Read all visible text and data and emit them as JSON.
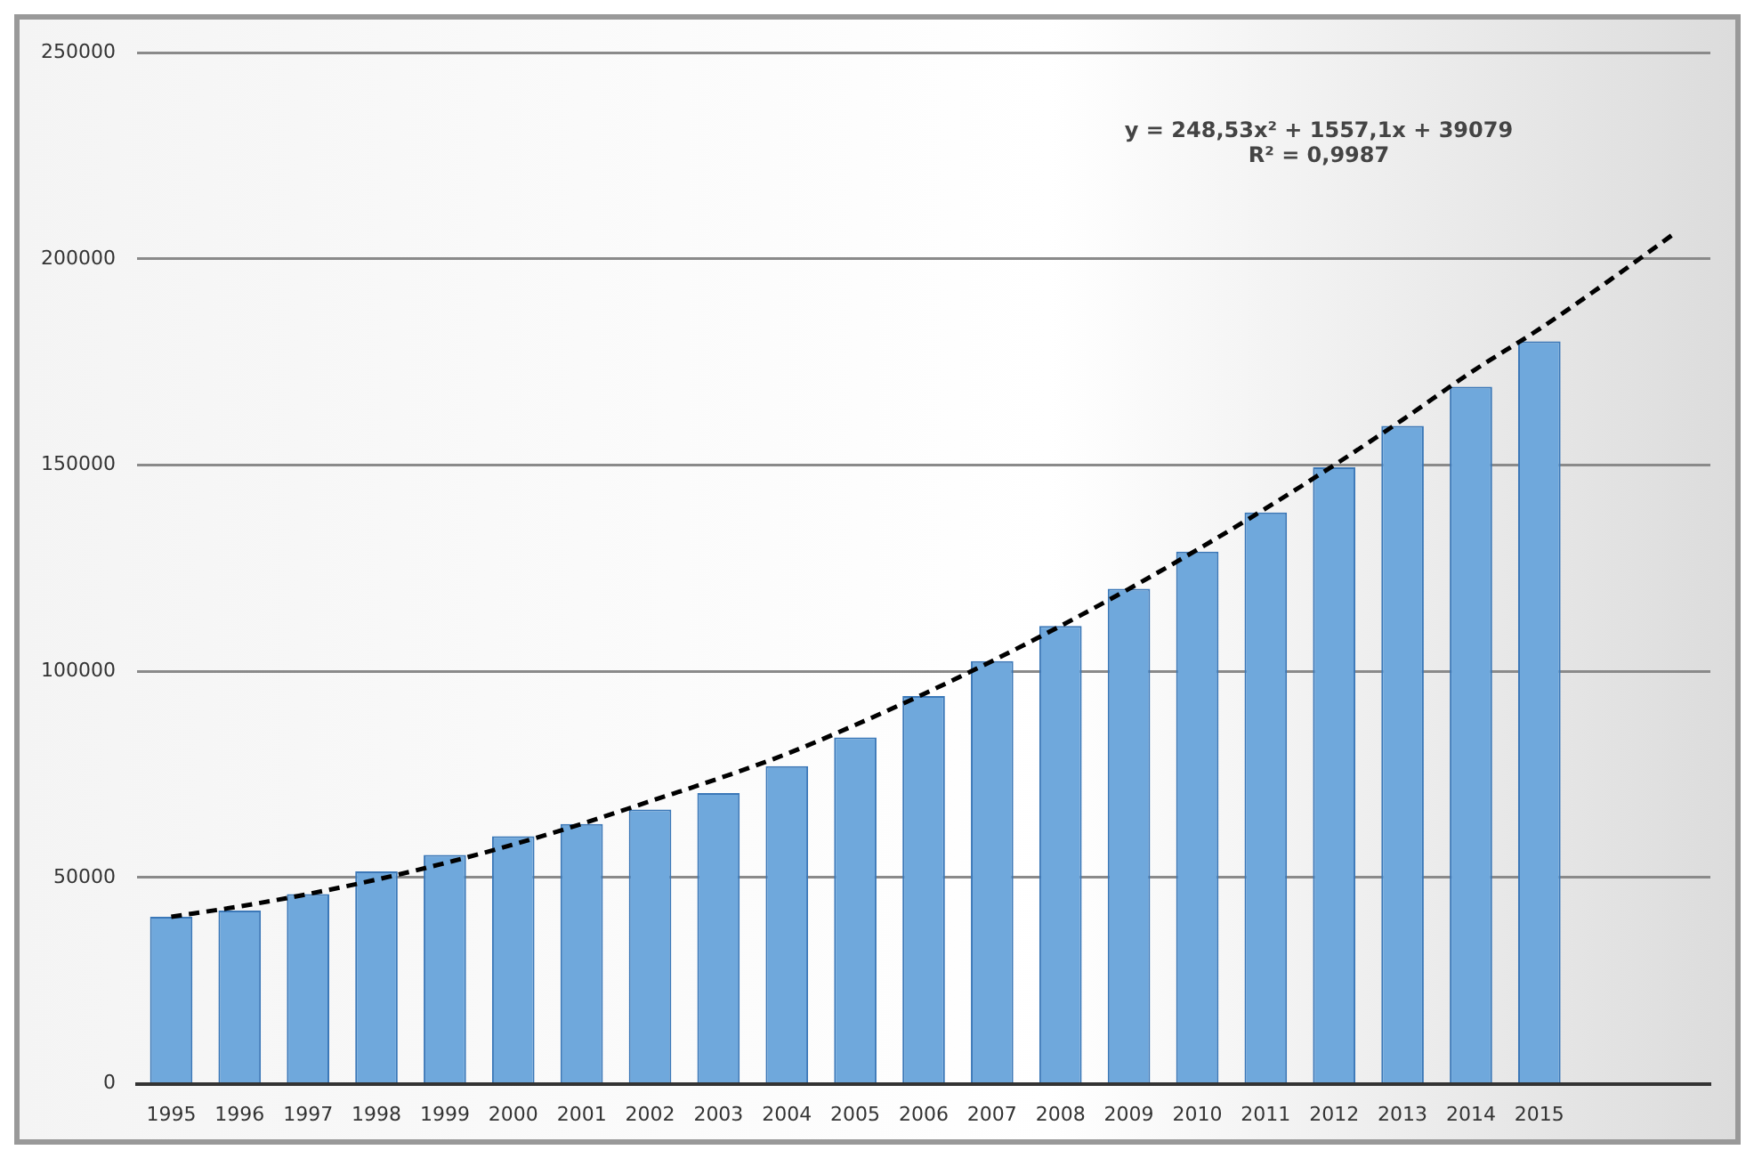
{
  "chart_data": {
    "type": "bar",
    "categories": [
      "1995",
      "1996",
      "1997",
      "1998",
      "1999",
      "2000",
      "2001",
      "2002",
      "2003",
      "2004",
      "2005",
      "2006",
      "2007",
      "2008",
      "2009",
      "2010",
      "2011",
      "2012",
      "2013",
      "2014",
      "2015",
      null,
      null
    ],
    "series": [
      {
        "color": "#6fa8dc",
        "values": [
          40500,
          42000,
          46000,
          51500,
          55500,
          60000,
          63000,
          66500,
          70500,
          77000,
          84000,
          94000,
          102500,
          111000,
          120000,
          129000,
          138500,
          149500,
          159500,
          169000,
          180000,
          null,
          null
        ]
      },
      {
        "type": "line",
        "color": "#000000",
        "line_style": "dashed",
        "marker": "none",
        "values": [
          40500,
          43000,
          46000,
          49500,
          53500,
          58000,
          63000,
          68500,
          74000,
          80000,
          87000,
          94500,
          102500,
          111000,
          120000,
          129500,
          139500,
          150000,
          161000,
          172500,
          183000,
          194500,
          206500
        ]
      }
    ],
    "ylim": [
      0,
      250000
    ],
    "yticks": [
      0,
      50000,
      100000,
      150000,
      200000,
      250000
    ],
    "grid": "y",
    "legend": false,
    "annotations": [
      "y = 248,53x² + 1557,1x + 39079",
      "R² = 0,9987"
    ]
  }
}
